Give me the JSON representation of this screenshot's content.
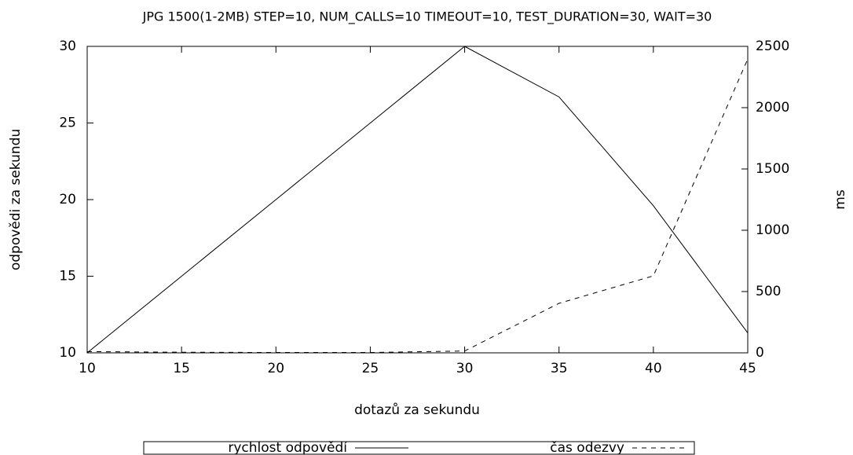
{
  "chart_data": {
    "type": "line",
    "title": "JPG 1500(1-2MB) STEP=10, NUM_CALLS=10 TIMEOUT=10, TEST_DURATION=30, WAIT=30",
    "x_label": "dotazů za sekundu",
    "y_label": "odpovědi za sekundu",
    "y2_label": "ms",
    "x": [
      10,
      15,
      20,
      25,
      30,
      35,
      40,
      45
    ],
    "series": [
      {
        "name": "rychlost odpovědí",
        "color": "#000000",
        "dash": "solid",
        "values": [
          10,
          15,
          20,
          25,
          30,
          26.7,
          19.6,
          11.3
        ]
      },
      {
        "name": "čas odezvy",
        "color": "#000000",
        "dash": "dashed",
        "axis": "y2",
        "values": [
          10,
          5,
          3,
          3,
          15,
          404,
          628,
          2397
        ]
      }
    ],
    "xlim": [
      10,
      45
    ],
    "xticks": [
      10,
      15,
      20,
      25,
      30,
      35,
      40,
      45
    ],
    "ylim": [
      10,
      30
    ],
    "yticks": [
      10,
      15,
      20,
      25,
      30
    ],
    "y2lim": [
      0,
      2500
    ],
    "y2ticks": [
      0,
      500,
      1000,
      1500,
      2000,
      2500
    ],
    "grid": false,
    "legend": "bottom"
  }
}
